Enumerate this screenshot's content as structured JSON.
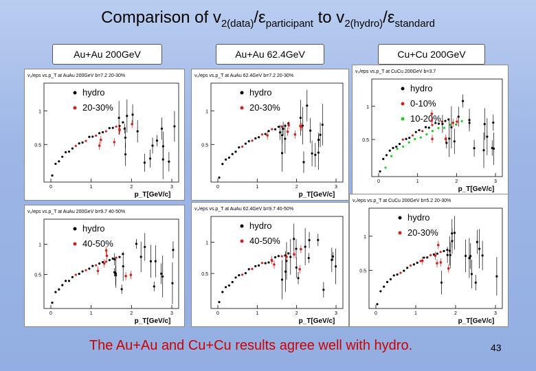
{
  "title": {
    "prefix": "Comparison of v",
    "sub1": "2(data)",
    "eps1": "/ε",
    "sub2": "participant",
    "mid": " to v",
    "sub3": "2(hydro)",
    "eps2": "/ε",
    "sub4": "standard"
  },
  "panel_labels": [
    "Au+Au 200GeV",
    "Au+Au 62.4GeV",
    "Cu+Cu 200GeV"
  ],
  "footer": "The Au+Au and Cu+Cu results agree well with hydro.",
  "page_number": "43",
  "colors": {
    "hydro": "#000000",
    "data1": "#cc2222",
    "data2": "#22cc22"
  },
  "plots": [
    {
      "header": "v₂/eps vs.p_T at AuAu 200GeV b=7.2 20-30%",
      "legend": [
        "hydro",
        "20-30%"
      ],
      "yticks": [
        "1",
        "0.5"
      ],
      "xticks": [
        "0",
        "1",
        "2",
        "3"
      ],
      "xlabel": "p_T[GeV/c]"
    },
    {
      "header": "v₂/eps vs.p_T at AuAu 62.4GeV b=7.2 20-30%",
      "legend": [
        "hydro",
        "20-30%"
      ],
      "yticks": [
        "1",
        "0.5"
      ],
      "xticks": [
        "0",
        "1",
        "2",
        "3"
      ],
      "xlabel": "p_T[GeV/c]"
    },
    {
      "header": "v₂/eps vs.p_T at CuCu 200GeV b=3.7",
      "legend": [
        "hydro",
        "0-10%",
        "10-20%"
      ],
      "yticks": [
        "1",
        "0.5"
      ],
      "xticks": [
        "0",
        "1",
        "2",
        "3"
      ],
      "xlabel": "p_T[GeV/c]"
    },
    {
      "header": "v₂/eps vs.p_T at AuAu 200GeV b=9.7 40-50%",
      "legend": [
        "hydro",
        "40-50%"
      ],
      "yticks": [
        "1",
        "0.5"
      ],
      "xticks": [
        "0",
        "1",
        "2",
        "3"
      ],
      "xlabel": "p_T[GeV/c]"
    },
    {
      "header": "v₂/eps vs.p_T at AuAu 62.4GeV b=9.7 40-50%",
      "legend": [
        "hydro",
        "40-50%"
      ],
      "yticks": [
        "1",
        "0.5"
      ],
      "xticks": [
        "0",
        "1",
        "2",
        "3"
      ],
      "xlabel": "p_T[GeV/c]"
    },
    {
      "header": "v₂/eps vs.p_T at CuCu 200GeV b=5.2 20-30%",
      "legend": [
        "hydro",
        "20-30%"
      ],
      "yticks": [
        "1",
        "0.5"
      ],
      "xticks": [
        "0",
        "1",
        "2",
        "3"
      ],
      "xlabel": "p_T[GeV/c]"
    }
  ]
}
